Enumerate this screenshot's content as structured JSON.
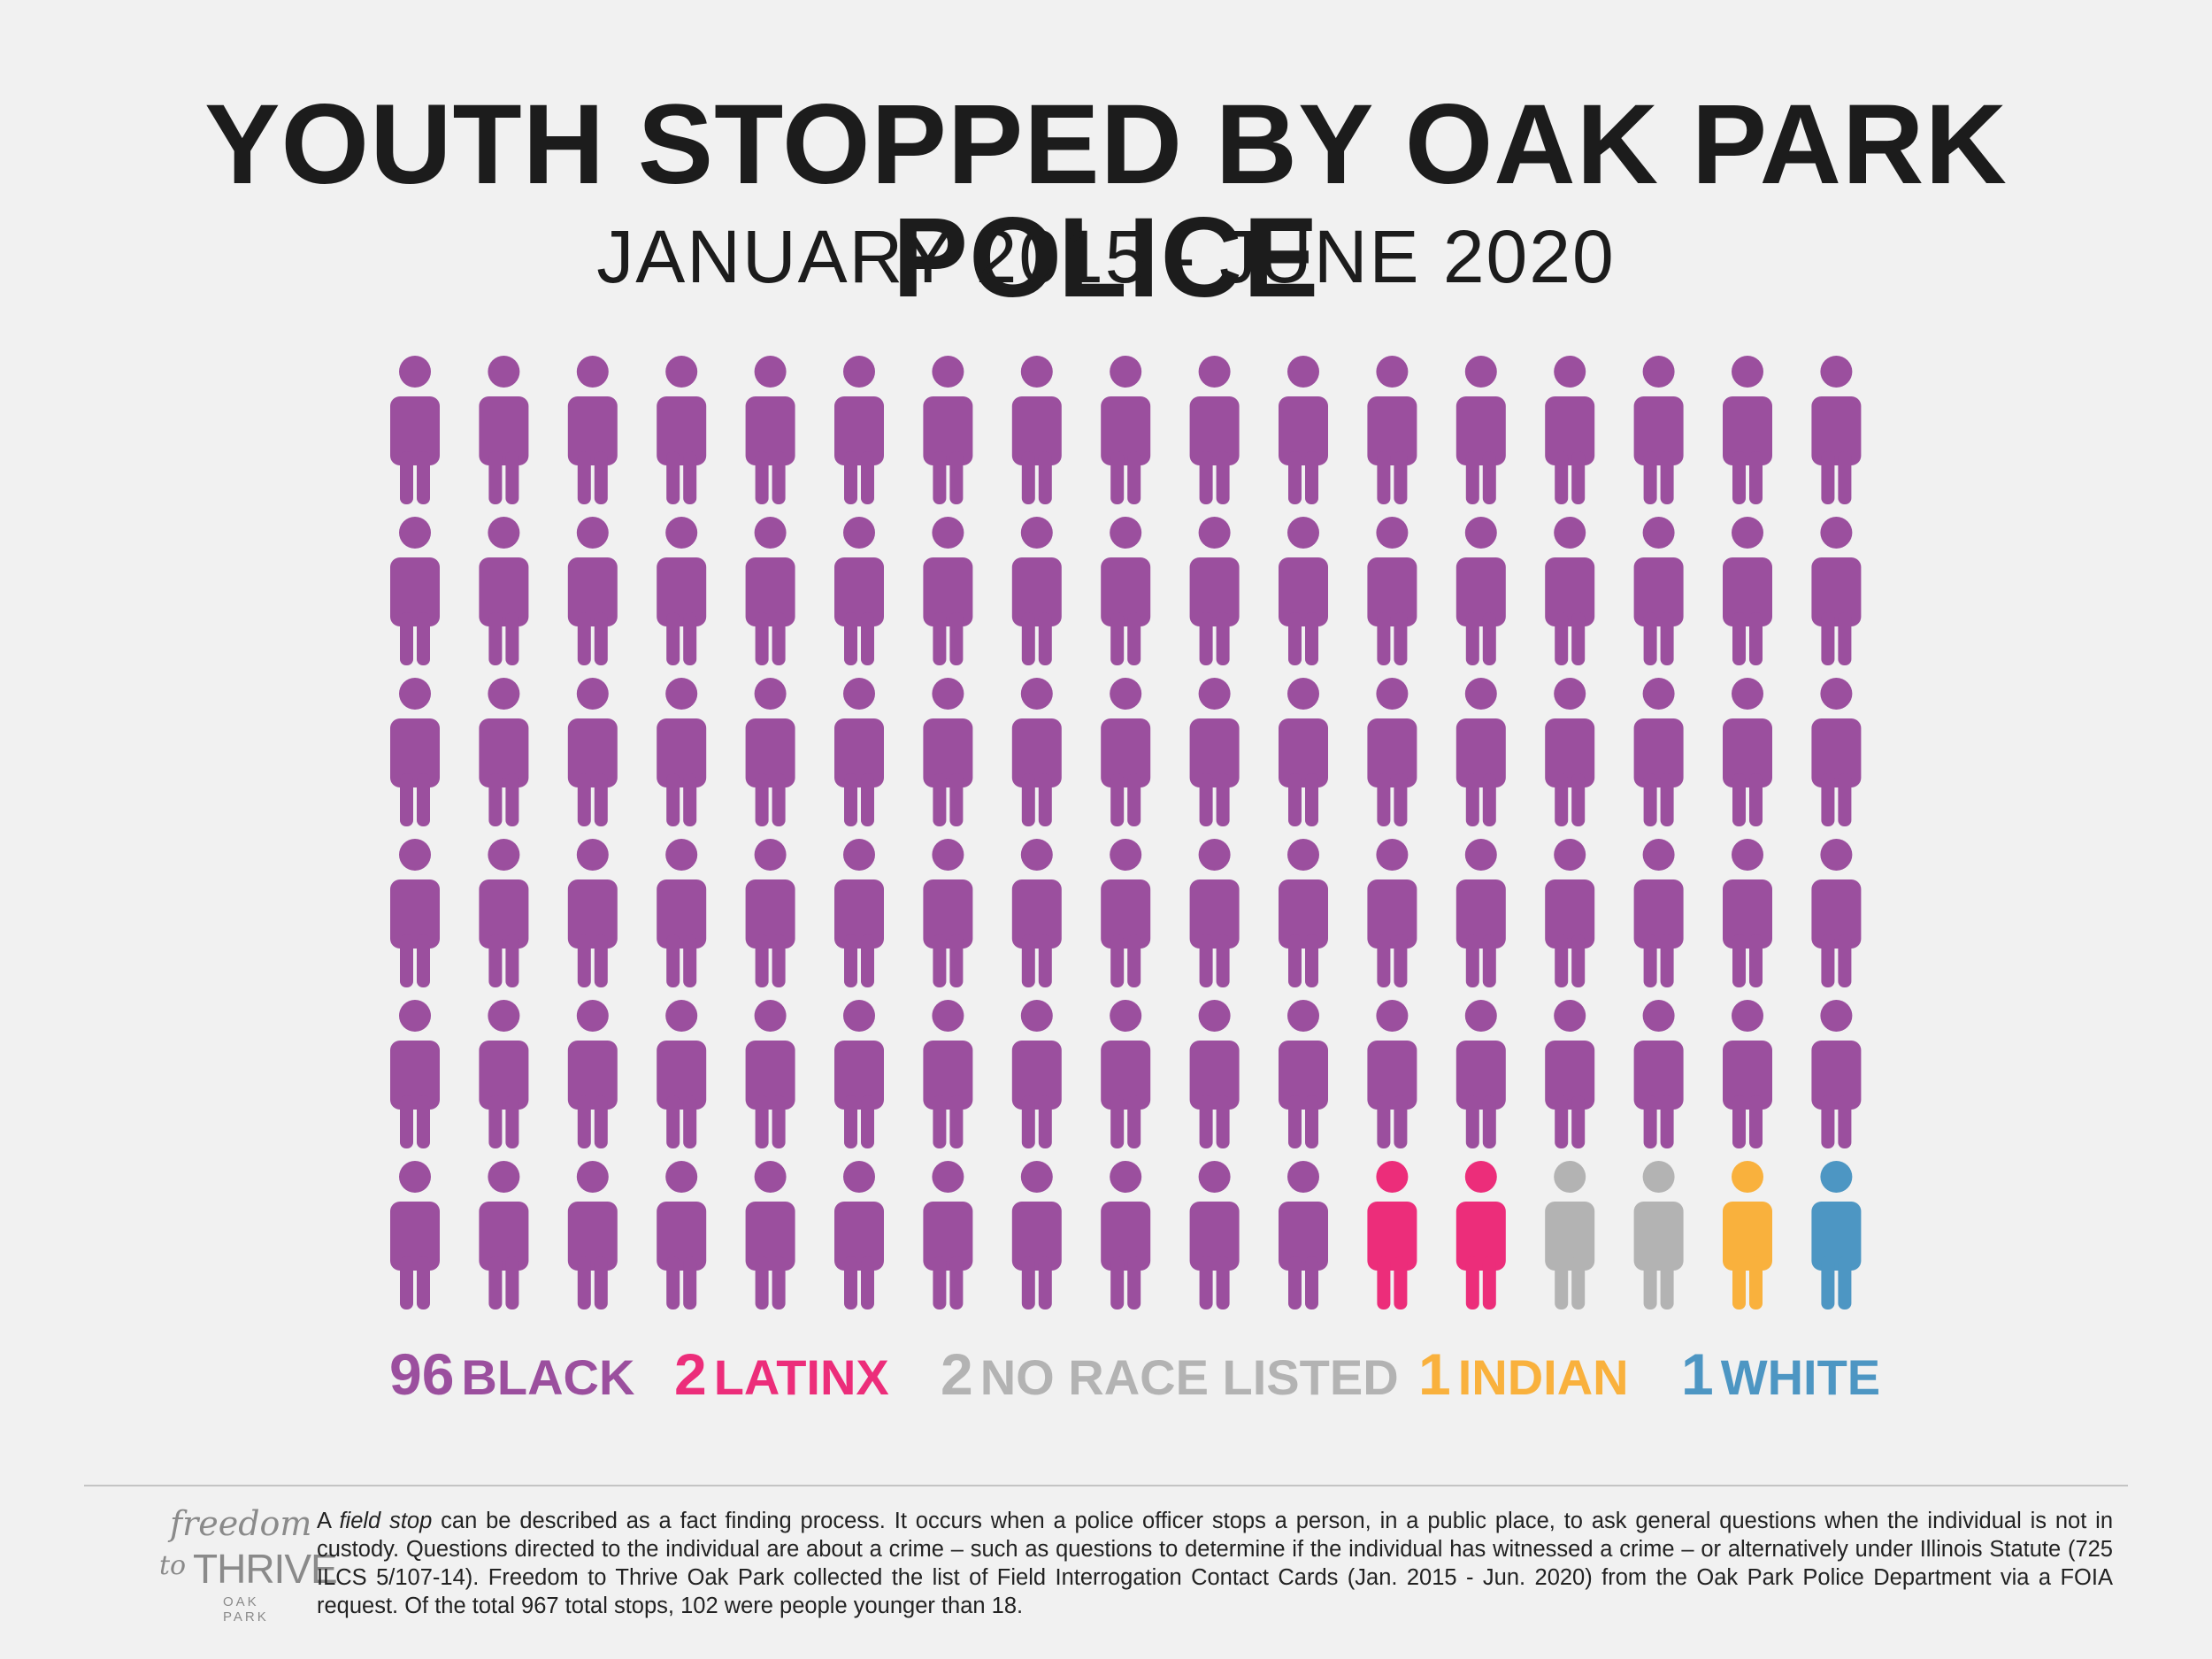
{
  "title": "YOUTH STOPPED BY OAK PARK POLICE",
  "subtitle": "JANUARY 2015 - JUNE 2020",
  "chart_data": {
    "type": "pictograph",
    "grid": {
      "rows": 6,
      "columns": 17
    },
    "total": 102,
    "series": [
      {
        "name": "BLACK",
        "value": 96,
        "color": "#9b4f9e"
      },
      {
        "name": "LATINX",
        "value": 2,
        "color": "#ec2d7a"
      },
      {
        "name": "NO RACE LISTED",
        "value": 2,
        "color": "#b3b3b3"
      },
      {
        "name": "INDIAN",
        "value": 1,
        "color": "#f9b13d"
      },
      {
        "name": "WHITE",
        "value": 1,
        "color": "#4d96c3"
      }
    ]
  },
  "legend": [
    {
      "value": "96",
      "label": "BLACK",
      "color": "#9b4f9e"
    },
    {
      "value": "2",
      "label": "LATINX",
      "color": "#ec2d7a"
    },
    {
      "value": "2",
      "label": "NO RACE LISTED",
      "color": "#b3b3b3"
    },
    {
      "value": "1",
      "label": "INDIAN",
      "color": "#f9b13d"
    },
    {
      "value": "1",
      "label": "WHITE",
      "color": "#4d96c3"
    }
  ],
  "logo": {
    "line1": "freedom",
    "line2_prefix": "to",
    "line2_main": "THRIVE",
    "line3": "OAK PARK"
  },
  "footnote": {
    "intro": "A ",
    "term": "field stop",
    "body": " can be described as a fact finding process. It occurs when a police officer stops a person, in a public place, to ask general questions when the individual is not in custody. Questions directed to the individual are about a crime – such as questions to determine if the individual has witnessed a crime – or alternatively under Illinois Statute (725 ILCS 5/107-14). Freedom to Thrive Oak Park collected the list of Field Interrogation Contact Cards (Jan. 2015 - Jun. 2020) from the Oak Park Police Department via a FOIA request. Of the total 967 total stops, 102 were people younger than 18."
  }
}
